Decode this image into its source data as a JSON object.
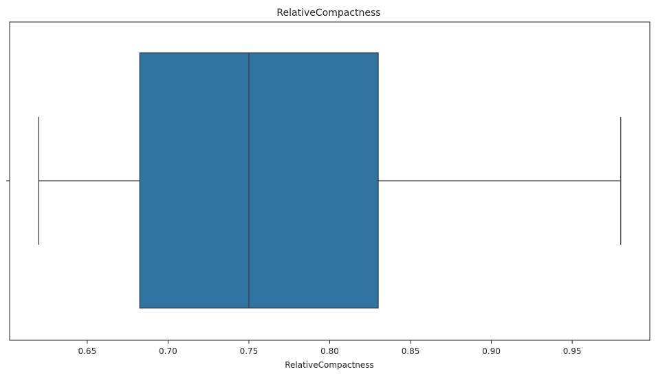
{
  "chart_data": {
    "type": "box",
    "title": "RelativeCompactness",
    "xlabel": "RelativeCompactness",
    "ylabel": "",
    "orientation": "horizontal",
    "xlim": [
      0.602,
      0.998
    ],
    "xticks": [
      0.65,
      0.7,
      0.75,
      0.8,
      0.85,
      0.9,
      0.95
    ],
    "xtick_labels": [
      "0.65",
      "0.70",
      "0.75",
      "0.80",
      "0.85",
      "0.90",
      "0.95"
    ],
    "grid": false,
    "box": {
      "whisker_low": 0.62,
      "q1": 0.6825,
      "median": 0.75,
      "q3": 0.83,
      "whisker_high": 0.98
    },
    "colors": {
      "box_fill": "#3274a1",
      "line": "#3d3d3d"
    }
  }
}
